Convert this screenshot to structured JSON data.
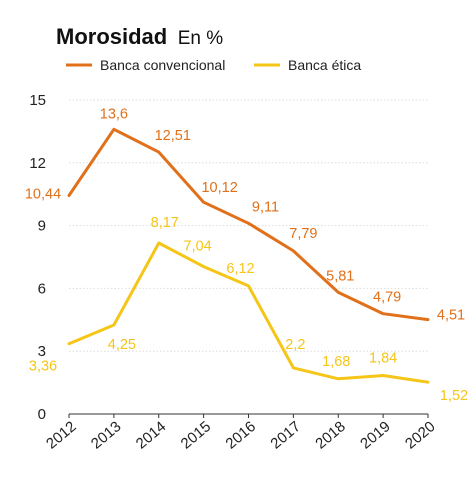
{
  "chart_data": {
    "type": "line",
    "title": "Morosidad",
    "subtitle": "En %",
    "x": [
      "2012",
      "2013",
      "2014",
      "2015",
      "2016",
      "2017",
      "2018",
      "2019",
      "2020"
    ],
    "ylim": [
      0,
      15
    ],
    "yticks": [
      "0",
      "3",
      "6",
      "9",
      "12",
      "15"
    ],
    "grid": "horizontal",
    "legend": "top-left",
    "series": [
      {
        "name": "Banca convencional",
        "color": "#e0701a",
        "values": [
          10.44,
          13.6,
          12.51,
          10.12,
          9.11,
          7.79,
          5.81,
          4.79,
          4.51
        ],
        "labels": [
          "10,44",
          "13,6",
          "12,51",
          "10,12",
          "9,11",
          "7,79",
          "5,81",
          "4,79",
          "4,51"
        ]
      },
      {
        "name": "Banca ética",
        "color": "#f5c518",
        "values": [
          3.36,
          4.25,
          8.17,
          7.04,
          6.12,
          2.2,
          1.68,
          1.84,
          1.52
        ],
        "labels": [
          "3,36",
          "4,25",
          "8,17",
          "7,04",
          "6,12",
          "2,2",
          "1,68",
          "1,84",
          "1,52"
        ]
      }
    ]
  }
}
